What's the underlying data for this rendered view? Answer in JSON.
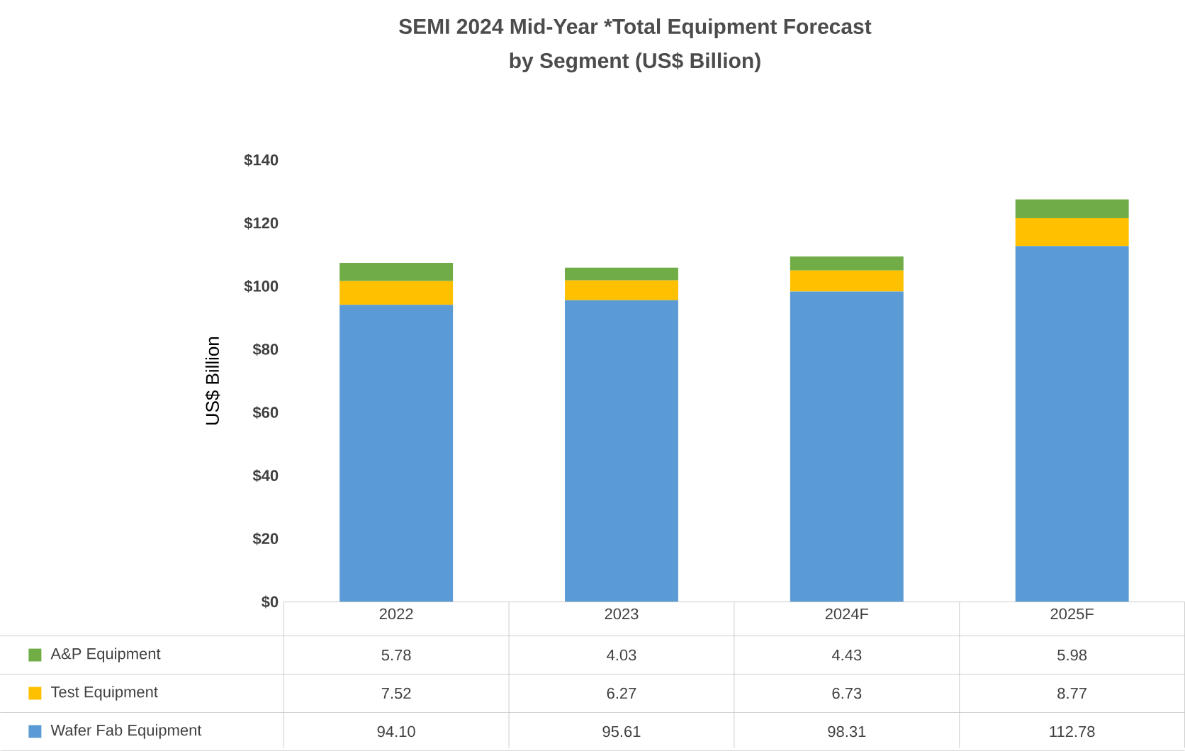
{
  "chart_data": {
    "type": "bar",
    "stacked": true,
    "title": "SEMI 2024 Mid-Year *Total Equipment Forecast",
    "subtitle": "by Segment (US$ Billion)",
    "ylabel": "US$ Billion",
    "categories": [
      "2022",
      "2023",
      "2024F",
      "2025F"
    ],
    "series": [
      {
        "name": "Wafer Fab Equipment",
        "color": "#5b9bd5",
        "values": [
          94.1,
          95.61,
          98.31,
          112.78
        ],
        "value_labels": [
          "94.10",
          "95.61",
          "98.31",
          "112.78"
        ]
      },
      {
        "name": "Test Equipment",
        "color": "#ffc000",
        "values": [
          7.52,
          6.27,
          6.73,
          8.77
        ],
        "value_labels": [
          "7.52",
          "6.27",
          "6.73",
          "8.77"
        ]
      },
      {
        "name": "A&P Equipment",
        "color": "#70ad47",
        "values": [
          5.78,
          4.03,
          4.43,
          5.98
        ],
        "value_labels": [
          "5.78",
          "4.03",
          "4.43",
          "5.98"
        ]
      }
    ],
    "ylim": [
      0,
      140
    ],
    "yticks": [
      {
        "value": 0,
        "label": "$0"
      },
      {
        "value": 20,
        "label": "$20"
      },
      {
        "value": 40,
        "label": "$40"
      },
      {
        "value": 60,
        "label": "$60"
      },
      {
        "value": 80,
        "label": "$80"
      },
      {
        "value": 100,
        "label": "$100"
      },
      {
        "value": 120,
        "label": "$120"
      },
      {
        "value": 140,
        "label": "$140"
      }
    ],
    "legend": "bottom"
  }
}
